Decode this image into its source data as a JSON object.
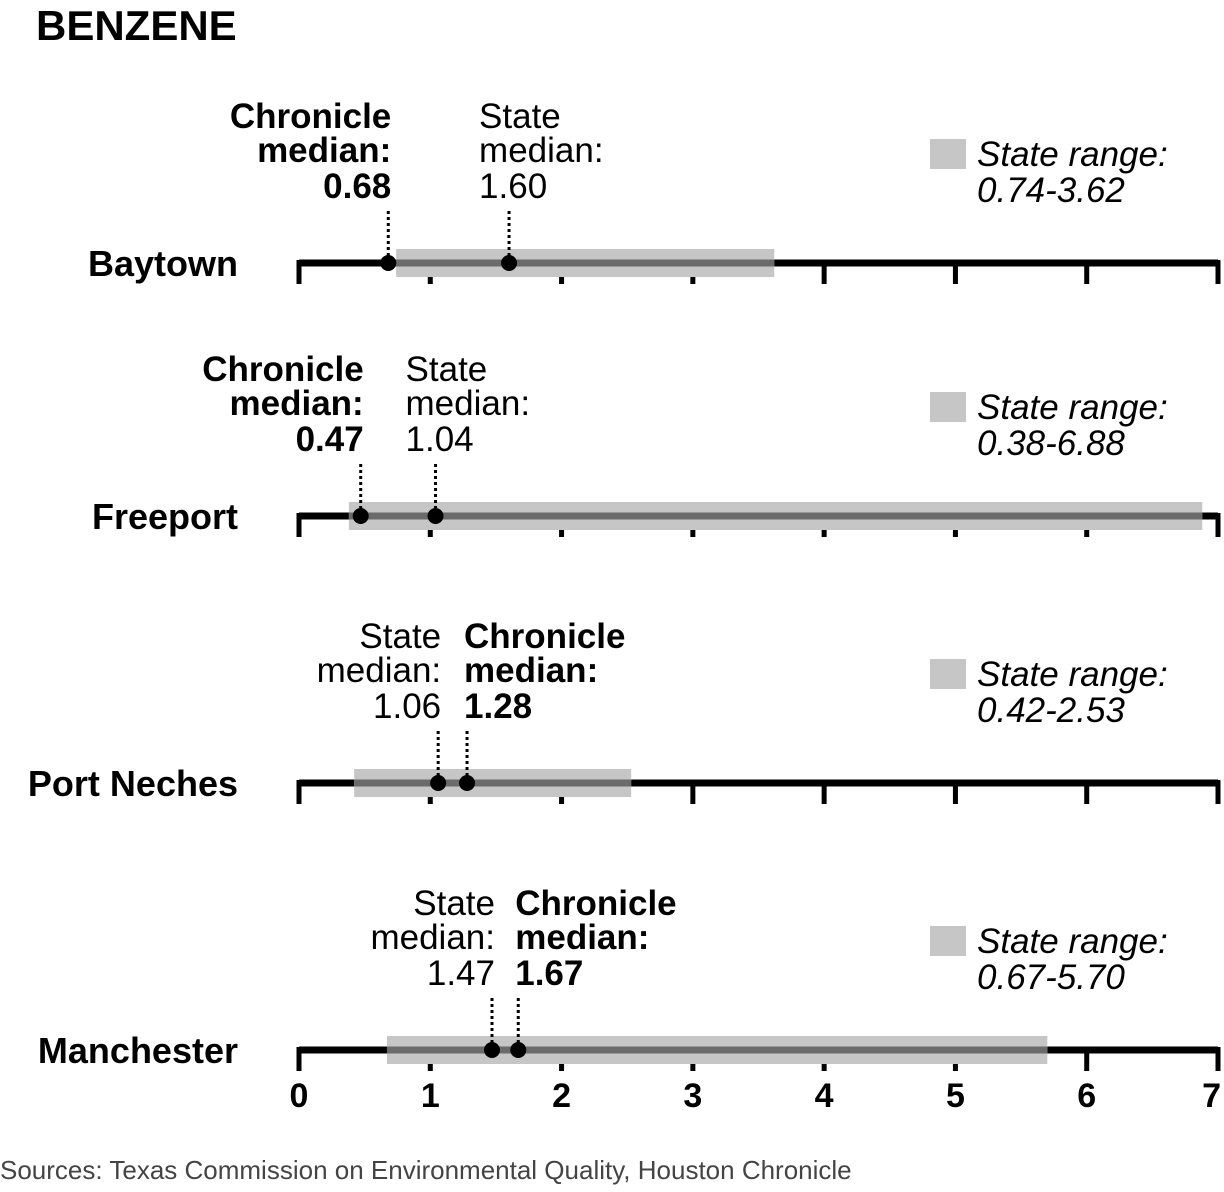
{
  "title": "BENZENE",
  "source": "Sources: Texas Commission on Environmental Quality, Houston Chronicle",
  "colors": {
    "axis": "#000000",
    "range_band": "#c6c6c6",
    "range_midline": "#6b6b6b",
    "marker": "#000000"
  },
  "chart_data": {
    "type": "range-dot",
    "xlim": [
      0,
      7
    ],
    "x_ticks": [
      "0",
      "1",
      "2",
      "3",
      "4",
      "5",
      "6",
      "7"
    ],
    "legend_label": "State range:",
    "rows": [
      {
        "city": "Baytown",
        "range_low": 0.74,
        "range_high": 3.62,
        "range_text": "0.74-3.62",
        "chronicle_median": 0.68,
        "chronicle_text": "0.68",
        "state_median": 1.6,
        "state_text": "1.60",
        "chronicle_label": [
          "Chronicle",
          "median:"
        ],
        "state_label": [
          "State",
          "median:"
        ]
      },
      {
        "city": "Freeport",
        "range_low": 0.38,
        "range_high": 6.88,
        "range_text": "0.38-6.88",
        "chronicle_median": 0.47,
        "chronicle_text": "0.47",
        "state_median": 1.04,
        "state_text": "1.04",
        "chronicle_label": [
          "Chronicle",
          "median:"
        ],
        "state_label": [
          "State",
          "median:"
        ]
      },
      {
        "city": "Port Neches",
        "range_low": 0.42,
        "range_high": 2.53,
        "range_text": "0.42-2.53",
        "chronicle_median": 1.28,
        "chronicle_text": "1.28",
        "state_median": 1.06,
        "state_text": "1.06",
        "chronicle_label": [
          "Chronicle",
          "median:"
        ],
        "state_label": [
          "State",
          "median:"
        ]
      },
      {
        "city": "Manchester",
        "range_low": 0.67,
        "range_high": 5.7,
        "range_text": "0.67-5.70",
        "chronicle_median": 1.67,
        "chronicle_text": "1.67",
        "state_median": 1.47,
        "state_text": "1.47",
        "chronicle_label": [
          "Chronicle",
          "median:"
        ],
        "state_label": [
          "State",
          "median:"
        ]
      }
    ]
  }
}
